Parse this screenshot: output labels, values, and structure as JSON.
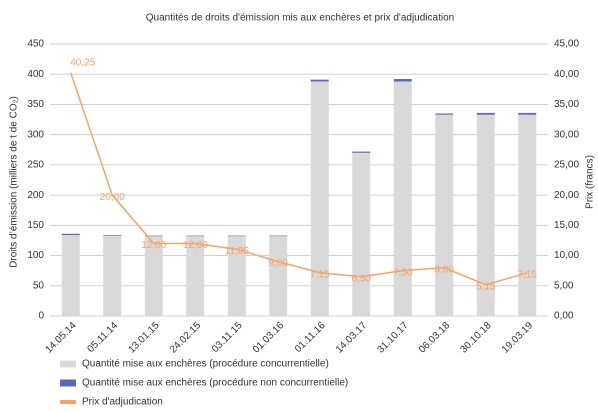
{
  "chart_data": {
    "type": "bar",
    "stacked": true,
    "title": "Quantités de droits d'émission mis aux enchères et prix d'adjudication",
    "y_label": "Droits d’émission (milliers de t de CO₂)",
    "y2_label": "Prix (francs)",
    "categories": [
      "14.05.14",
      "05.11.14",
      "13.01.15",
      "24.02.15",
      "03.11.15",
      "01.03.16",
      "01.11.16",
      "14.03.17",
      "31.10.17",
      "06.03.18",
      "30.10.18",
      "19.03.19"
    ],
    "series": [
      {
        "name": "Quantité mise aux enchères (procédure concurrentielle)",
        "type": "bar",
        "color": "#d9d9d9",
        "values": [
          134,
          133,
          132,
          132,
          132,
          132,
          388,
          270,
          388,
          333,
          333,
          333
        ]
      },
      {
        "name": "Quantité mise aux enchères (procédure non concurrentielle)",
        "type": "bar",
        "color": "#5b6ab5",
        "values": [
          2,
          1,
          1,
          1,
          1,
          1,
          3,
          2,
          4,
          2,
          3,
          3
        ]
      },
      {
        "name": "Prix d'adjudication",
        "type": "line",
        "axis": "y2",
        "color": "#f5a469",
        "values": [
          40.25,
          20.0,
          12.0,
          12.0,
          11.05,
          9.0,
          7.15,
          6.5,
          7.5,
          8.0,
          5.15,
          7.15
        ],
        "value_labels": [
          "40,25",
          "20,00",
          "12,00",
          "12,00",
          "11,05",
          "9,00",
          "7,15",
          "6,50",
          "7,50",
          "8,00",
          "5,15",
          "7,15"
        ]
      }
    ],
    "ylim": [
      0,
      450
    ],
    "yticks": [
      0,
      50,
      100,
      150,
      200,
      250,
      300,
      350,
      400,
      450
    ],
    "y2lim": [
      0,
      45
    ],
    "y2ticks": [
      {
        "value": 0,
        "label": "0,00"
      },
      {
        "value": 5,
        "label": "5,00"
      },
      {
        "value": 10,
        "label": "10,00"
      },
      {
        "value": 15,
        "label": "15,00"
      },
      {
        "value": 20,
        "label": "20,00"
      },
      {
        "value": 25,
        "label": "25,00"
      },
      {
        "value": 30,
        "label": "30,00"
      },
      {
        "value": 35,
        "label": "35,00"
      },
      {
        "value": 40,
        "label": "40,00"
      },
      {
        "value": 45,
        "label": "45,00"
      }
    ],
    "grid": true,
    "legend": "bottom"
  }
}
